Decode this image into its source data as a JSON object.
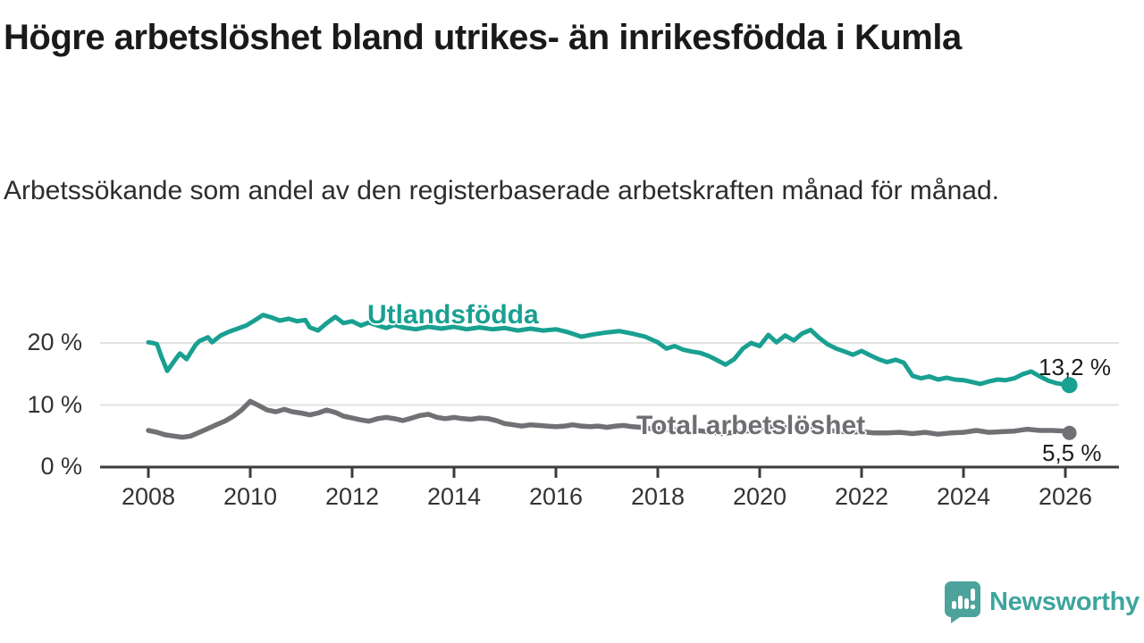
{
  "header": {
    "title": "Högre arbetslöshet bland utrikes- än inrikesfödda i Kumla",
    "subtitle": "Arbetssökande som andel av den registerbaserade arbetskraften månad för månad."
  },
  "chart_data": {
    "type": "line",
    "title": "Högre arbetslöshet bland utrikes- än inrikesfödda i Kumla",
    "subtitle": "Arbetssökande som andel av den registerbaserade arbetskraften månad för månad.",
    "grid": "horizontal",
    "x_axis": {
      "ticks": [
        2008,
        2010,
        2012,
        2014,
        2016,
        2018,
        2020,
        2022,
        2024,
        2026
      ],
      "range": [
        2007.05,
        2026.4
      ],
      "unit": "year"
    },
    "y_axis": {
      "ticks": [
        0,
        10,
        20
      ],
      "tick_labels": [
        "0 %",
        "10 %",
        "20 %"
      ],
      "range": [
        0,
        26
      ],
      "unit": "percent"
    },
    "series": [
      {
        "name": "Utlandsfödda",
        "color": "#19a091",
        "end_label": "13,2 %",
        "end_value": 13.2,
        "points": [
          [
            2008.0,
            20.1
          ],
          [
            2008.08,
            20.0
          ],
          [
            2008.17,
            19.8
          ],
          [
            2008.25,
            17.9
          ],
          [
            2008.37,
            15.5
          ],
          [
            2008.5,
            17.0
          ],
          [
            2008.62,
            18.3
          ],
          [
            2008.75,
            17.4
          ],
          [
            2008.92,
            19.6
          ],
          [
            2009.0,
            20.3
          ],
          [
            2009.17,
            20.9
          ],
          [
            2009.25,
            20.1
          ],
          [
            2009.42,
            21.2
          ],
          [
            2009.58,
            21.8
          ],
          [
            2009.75,
            22.3
          ],
          [
            2009.92,
            22.8
          ],
          [
            2010.08,
            23.6
          ],
          [
            2010.25,
            24.5
          ],
          [
            2010.42,
            24.1
          ],
          [
            2010.58,
            23.6
          ],
          [
            2010.75,
            23.9
          ],
          [
            2010.92,
            23.5
          ],
          [
            2011.08,
            23.7
          ],
          [
            2011.17,
            22.5
          ],
          [
            2011.33,
            22.0
          ],
          [
            2011.5,
            23.2
          ],
          [
            2011.67,
            24.2
          ],
          [
            2011.83,
            23.2
          ],
          [
            2012.0,
            23.5
          ],
          [
            2012.17,
            22.8
          ],
          [
            2012.33,
            23.3
          ],
          [
            2012.5,
            22.8
          ],
          [
            2012.67,
            22.4
          ],
          [
            2012.83,
            22.9
          ],
          [
            2013.0,
            22.5
          ],
          [
            2013.25,
            22.2
          ],
          [
            2013.5,
            22.6
          ],
          [
            2013.75,
            22.3
          ],
          [
            2014.0,
            22.6
          ],
          [
            2014.25,
            22.2
          ],
          [
            2014.5,
            22.5
          ],
          [
            2014.75,
            22.2
          ],
          [
            2015.0,
            22.4
          ],
          [
            2015.25,
            22.0
          ],
          [
            2015.5,
            22.3
          ],
          [
            2015.75,
            22.0
          ],
          [
            2016.0,
            22.2
          ],
          [
            2016.25,
            21.7
          ],
          [
            2016.5,
            21.0
          ],
          [
            2016.75,
            21.4
          ],
          [
            2017.0,
            21.7
          ],
          [
            2017.25,
            21.9
          ],
          [
            2017.5,
            21.5
          ],
          [
            2017.75,
            21.0
          ],
          [
            2018.0,
            20.1
          ],
          [
            2018.17,
            19.1
          ],
          [
            2018.33,
            19.5
          ],
          [
            2018.5,
            18.9
          ],
          [
            2018.67,
            18.6
          ],
          [
            2018.83,
            18.4
          ],
          [
            2019.0,
            17.9
          ],
          [
            2019.17,
            17.2
          ],
          [
            2019.33,
            16.5
          ],
          [
            2019.5,
            17.4
          ],
          [
            2019.67,
            19.1
          ],
          [
            2019.83,
            20.0
          ],
          [
            2020.0,
            19.5
          ],
          [
            2020.17,
            21.3
          ],
          [
            2020.33,
            20.1
          ],
          [
            2020.5,
            21.2
          ],
          [
            2020.67,
            20.4
          ],
          [
            2020.83,
            21.5
          ],
          [
            2021.0,
            22.1
          ],
          [
            2021.17,
            20.8
          ],
          [
            2021.33,
            19.8
          ],
          [
            2021.5,
            19.1
          ],
          [
            2021.67,
            18.6
          ],
          [
            2021.83,
            18.1
          ],
          [
            2022.0,
            18.7
          ],
          [
            2022.17,
            18.0
          ],
          [
            2022.33,
            17.4
          ],
          [
            2022.5,
            16.9
          ],
          [
            2022.67,
            17.3
          ],
          [
            2022.83,
            16.8
          ],
          [
            2023.0,
            14.7
          ],
          [
            2023.17,
            14.3
          ],
          [
            2023.33,
            14.6
          ],
          [
            2023.5,
            14.1
          ],
          [
            2023.67,
            14.4
          ],
          [
            2023.83,
            14.1
          ],
          [
            2024.0,
            14.0
          ],
          [
            2024.17,
            13.7
          ],
          [
            2024.33,
            13.4
          ],
          [
            2024.5,
            13.8
          ],
          [
            2024.67,
            14.1
          ],
          [
            2024.83,
            14.0
          ],
          [
            2025.0,
            14.3
          ],
          [
            2025.17,
            15.0
          ],
          [
            2025.33,
            15.4
          ],
          [
            2025.5,
            14.6
          ],
          [
            2025.67,
            13.9
          ],
          [
            2025.83,
            13.5
          ],
          [
            2026.0,
            13.3
          ],
          [
            2026.08,
            13.2
          ]
        ]
      },
      {
        "name": "Total arbetslöshet",
        "color": "#717175",
        "end_label": "5,5 %",
        "end_value": 5.5,
        "points": [
          [
            2008.0,
            5.9
          ],
          [
            2008.17,
            5.6
          ],
          [
            2008.33,
            5.2
          ],
          [
            2008.5,
            5.0
          ],
          [
            2008.67,
            4.8
          ],
          [
            2008.83,
            5.0
          ],
          [
            2009.0,
            5.6
          ],
          [
            2009.17,
            6.2
          ],
          [
            2009.33,
            6.8
          ],
          [
            2009.5,
            7.4
          ],
          [
            2009.67,
            8.2
          ],
          [
            2009.83,
            9.2
          ],
          [
            2010.0,
            10.6
          ],
          [
            2010.17,
            9.9
          ],
          [
            2010.33,
            9.2
          ],
          [
            2010.5,
            8.9
          ],
          [
            2010.67,
            9.3
          ],
          [
            2010.83,
            8.9
          ],
          [
            2011.0,
            8.7
          ],
          [
            2011.17,
            8.4
          ],
          [
            2011.33,
            8.7
          ],
          [
            2011.5,
            9.2
          ],
          [
            2011.67,
            8.8
          ],
          [
            2011.83,
            8.2
          ],
          [
            2012.0,
            7.9
          ],
          [
            2012.17,
            7.6
          ],
          [
            2012.33,
            7.4
          ],
          [
            2012.5,
            7.8
          ],
          [
            2012.67,
            8.0
          ],
          [
            2012.83,
            7.8
          ],
          [
            2013.0,
            7.5
          ],
          [
            2013.17,
            7.9
          ],
          [
            2013.33,
            8.3
          ],
          [
            2013.5,
            8.5
          ],
          [
            2013.67,
            8.0
          ],
          [
            2013.83,
            7.8
          ],
          [
            2014.0,
            8.0
          ],
          [
            2014.17,
            7.8
          ],
          [
            2014.33,
            7.7
          ],
          [
            2014.5,
            7.9
          ],
          [
            2014.67,
            7.8
          ],
          [
            2014.83,
            7.5
          ],
          [
            2015.0,
            7.0
          ],
          [
            2015.17,
            6.8
          ],
          [
            2015.33,
            6.6
          ],
          [
            2015.5,
            6.8
          ],
          [
            2015.67,
            6.7
          ],
          [
            2015.83,
            6.6
          ],
          [
            2016.0,
            6.5
          ],
          [
            2016.17,
            6.6
          ],
          [
            2016.33,
            6.8
          ],
          [
            2016.5,
            6.6
          ],
          [
            2016.67,
            6.5
          ],
          [
            2016.83,
            6.6
          ],
          [
            2017.0,
            6.4
          ],
          [
            2017.17,
            6.6
          ],
          [
            2017.33,
            6.7
          ],
          [
            2017.5,
            6.5
          ],
          [
            2017.67,
            6.4
          ],
          [
            2017.83,
            6.2
          ],
          [
            2018.0,
            6.2
          ],
          [
            2018.25,
            6.0
          ],
          [
            2018.5,
            6.1
          ],
          [
            2018.75,
            5.9
          ],
          [
            2019.0,
            5.7
          ],
          [
            2019.25,
            5.4
          ],
          [
            2019.5,
            5.6
          ],
          [
            2019.75,
            5.8
          ],
          [
            2020.0,
            6.0
          ],
          [
            2020.25,
            6.6
          ],
          [
            2020.5,
            6.4
          ],
          [
            2020.75,
            6.2
          ],
          [
            2021.0,
            6.3
          ],
          [
            2021.25,
            6.0
          ],
          [
            2021.5,
            5.8
          ],
          [
            2021.75,
            5.6
          ],
          [
            2022.0,
            5.7
          ],
          [
            2022.25,
            5.5
          ],
          [
            2022.5,
            5.5
          ],
          [
            2022.75,
            5.6
          ],
          [
            2023.0,
            5.4
          ],
          [
            2023.25,
            5.6
          ],
          [
            2023.5,
            5.3
          ],
          [
            2023.75,
            5.5
          ],
          [
            2024.0,
            5.6
          ],
          [
            2024.25,
            5.9
          ],
          [
            2024.5,
            5.6
          ],
          [
            2024.75,
            5.7
          ],
          [
            2025.0,
            5.8
          ],
          [
            2025.25,
            6.1
          ],
          [
            2025.5,
            5.9
          ],
          [
            2025.75,
            5.9
          ],
          [
            2026.0,
            5.8
          ],
          [
            2026.08,
            5.5
          ]
        ]
      }
    ]
  },
  "branding": {
    "logo_text": "Newsworthy",
    "logo_color": "#3ea59e",
    "icon_color": "#4ba39c"
  }
}
